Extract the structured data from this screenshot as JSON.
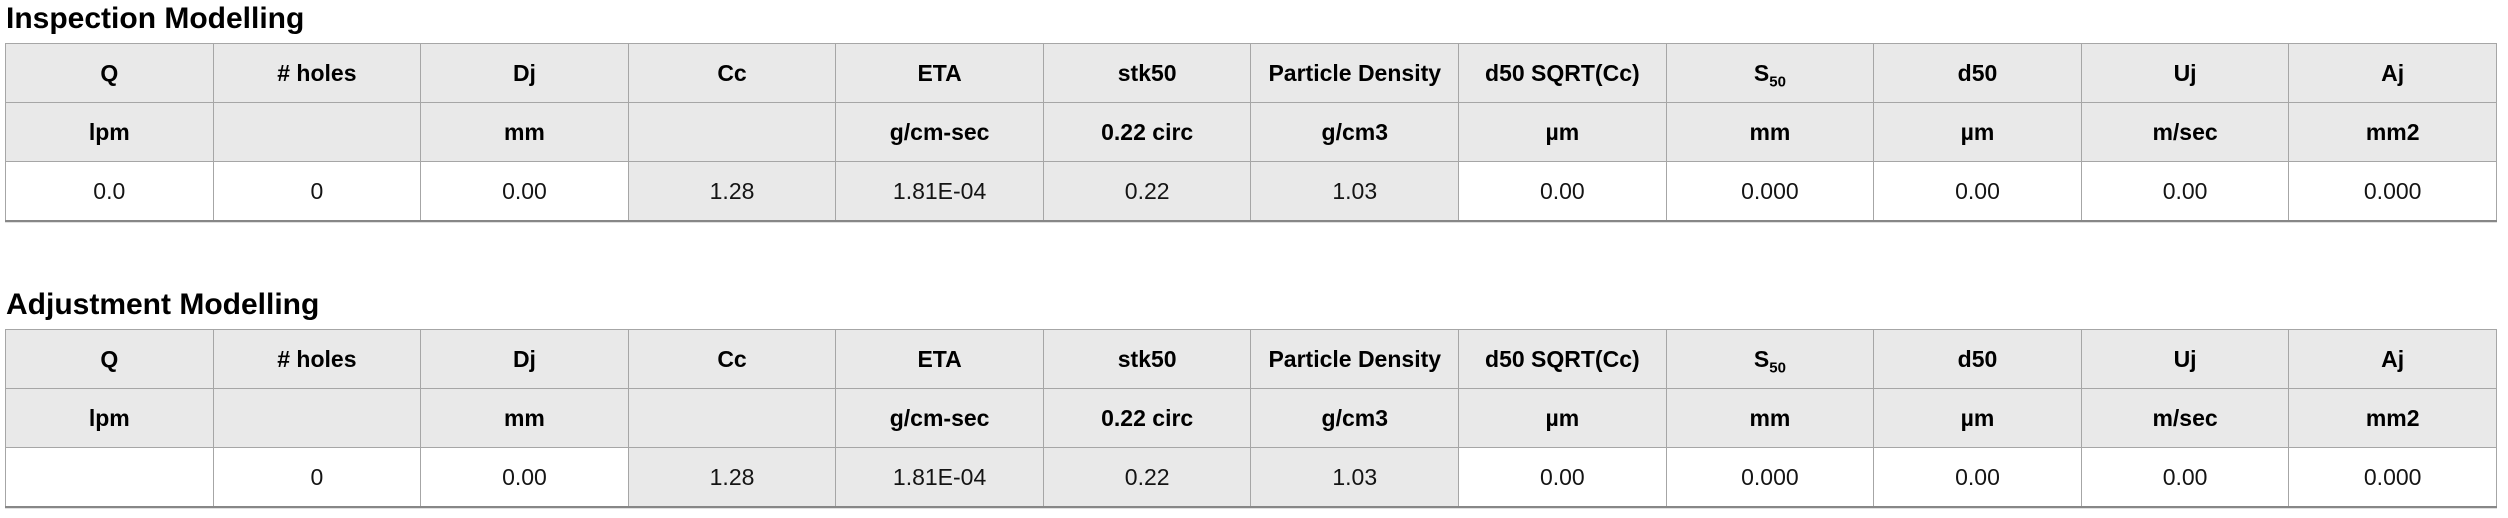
{
  "colors": {
    "page_background": "#ffffff",
    "header_cell_background": "#e9e9e9",
    "computed_cell_background": "#e9e9e9",
    "input_cell_background": "#ffffff",
    "border": "#a6a6a6",
    "text": "#000000"
  },
  "s50_base": "S",
  "s50_sub": "50",
  "tables": [
    {
      "title": "Inspection Modelling",
      "headers": [
        "Q",
        "# holes",
        "Dj",
        "Cc",
        "ETA",
        "stk50",
        "Particle Density",
        "d50 SQRT(Cc)",
        "S",
        "d50",
        "Uj",
        "Aj"
      ],
      "units": [
        "lpm",
        "",
        "mm",
        "",
        "g/cm-sec",
        "0.22 circ",
        "g/cm3",
        "µm",
        "mm",
        "µm",
        "m/sec",
        "mm2"
      ],
      "values": [
        "0.0",
        "0",
        "0.00",
        "1.28",
        "1.81E-04",
        "0.22",
        "1.03",
        "0.00",
        "0.000",
        "0.00",
        "0.00",
        "0.000"
      ]
    },
    {
      "title": "Adjustment Modelling",
      "headers": [
        "Q",
        "# holes",
        "Dj",
        "Cc",
        "ETA",
        "stk50",
        "Particle Density",
        "d50 SQRT(Cc)",
        "S",
        "d50",
        "Uj",
        "Aj"
      ],
      "units": [
        "lpm",
        "",
        "mm",
        "",
        "g/cm-sec",
        "0.22 circ",
        "g/cm3",
        "µm",
        "mm",
        "µm",
        "m/sec",
        "mm2"
      ],
      "values": [
        "",
        "0",
        "0.00",
        "1.28",
        "1.81E-04",
        "0.22",
        "1.03",
        "0.00",
        "0.000",
        "0.00",
        "0.00",
        "0.000"
      ]
    }
  ]
}
